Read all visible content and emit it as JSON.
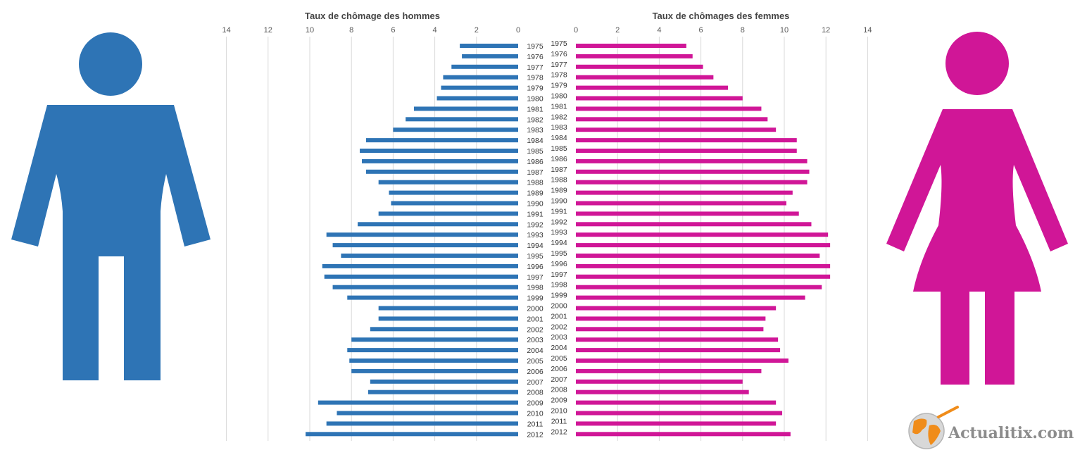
{
  "chart_data": [
    {
      "type": "bar",
      "orientation": "horizontal",
      "direction": "leftward",
      "title": "Taux  de chômage  des hommes",
      "categories": [
        "1975",
        "1976",
        "1977",
        "1978",
        "1979",
        "1980",
        "1981",
        "1982",
        "1983",
        "1984",
        "1985",
        "1986",
        "1987",
        "1988",
        "1989",
        "1990",
        "1991",
        "1992",
        "1993",
        "1994",
        "1995",
        "1996",
        "1997",
        "1998",
        "1999",
        "2000",
        "2001",
        "2002",
        "2003",
        "2004",
        "2005",
        "2006",
        "2007",
        "2008",
        "2009",
        "2010",
        "2011",
        "2012"
      ],
      "values": [
        2.8,
        2.7,
        3.2,
        3.6,
        3.7,
        3.9,
        5.0,
        5.4,
        6.0,
        7.3,
        7.6,
        7.5,
        7.3,
        6.7,
        6.2,
        6.1,
        6.7,
        7.7,
        9.2,
        8.9,
        8.5,
        9.4,
        9.3,
        8.9,
        8.2,
        6.7,
        6.7,
        7.1,
        8.0,
        8.2,
        8.1,
        8.0,
        7.1,
        7.2,
        9.6,
        8.7,
        9.2,
        10.2
      ],
      "xlim": [
        0,
        14
      ],
      "ticks": [
        "0",
        "2",
        "4",
        "6",
        "8",
        "10",
        "12",
        "14"
      ],
      "color": "#2e74b5",
      "grid": true
    },
    {
      "type": "bar",
      "orientation": "horizontal",
      "direction": "rightward",
      "title": "Taux  de chômages  des femmes",
      "categories": [
        "1975",
        "1976",
        "1977",
        "1978",
        "1979",
        "1980",
        "1981",
        "1982",
        "1983",
        "1984",
        "1985",
        "1986",
        "1987",
        "1988",
        "1989",
        "1990",
        "1991",
        "1992",
        "1993",
        "1994",
        "1995",
        "1996",
        "1997",
        "1998",
        "1999",
        "2000",
        "2001",
        "2002",
        "2003",
        "2004",
        "2005",
        "2006",
        "2007",
        "2008",
        "2009",
        "2010",
        "2011",
        "2012"
      ],
      "values": [
        5.3,
        5.6,
        6.1,
        6.6,
        7.3,
        8.0,
        8.9,
        9.2,
        9.6,
        10.6,
        10.6,
        11.1,
        11.2,
        11.1,
        10.4,
        10.1,
        10.7,
        11.3,
        12.1,
        12.2,
        11.7,
        12.2,
        12.2,
        11.8,
        11.0,
        9.6,
        9.1,
        9.0,
        9.7,
        9.8,
        10.2,
        8.9,
        8.0,
        8.3,
        9.6,
        9.9,
        9.6,
        10.3
      ],
      "xlim": [
        0,
        14
      ],
      "ticks": [
        "0",
        "2",
        "4",
        "6",
        "8",
        "10",
        "12",
        "14"
      ],
      "color": "#d01697",
      "grid": true
    }
  ],
  "icons": {
    "male": {
      "name": "male-figure-icon",
      "color": "#2e74b5"
    },
    "female": {
      "name": "female-figure-icon",
      "color": "#d01697"
    },
    "logo": {
      "name": "globe-logo-icon",
      "text": "Actualitix.com"
    }
  }
}
